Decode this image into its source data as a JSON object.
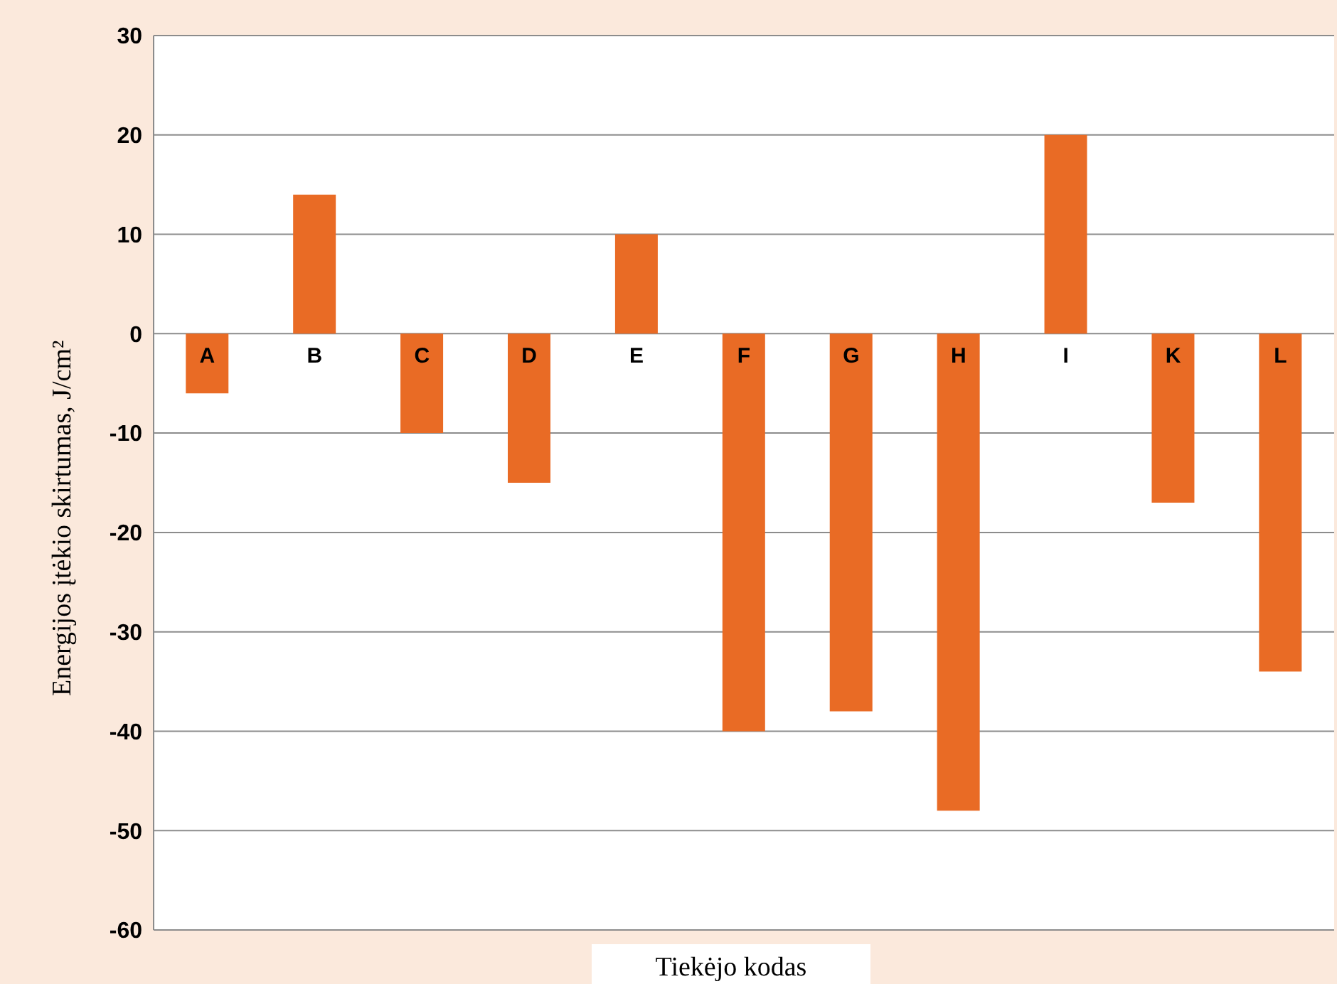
{
  "chart_data": {
    "type": "bar",
    "xlabel": "Tiekėjo kodas",
    "ylabel": "Energijos įtėkio skirtumas, J/cm²",
    "categories": [
      "A",
      "B",
      "C",
      "D",
      "E",
      "F",
      "G",
      "H",
      "I",
      "K",
      "L"
    ],
    "values": [
      -6,
      14,
      -10,
      -15,
      10,
      -40,
      -38,
      -48,
      20,
      -17,
      -34
    ],
    "color": "#e96b25",
    "ylim": [
      -60,
      30
    ],
    "yticks": [
      -60,
      -50,
      -40,
      -30,
      -20,
      -10,
      0,
      10,
      20,
      30
    ],
    "grid": "y"
  }
}
